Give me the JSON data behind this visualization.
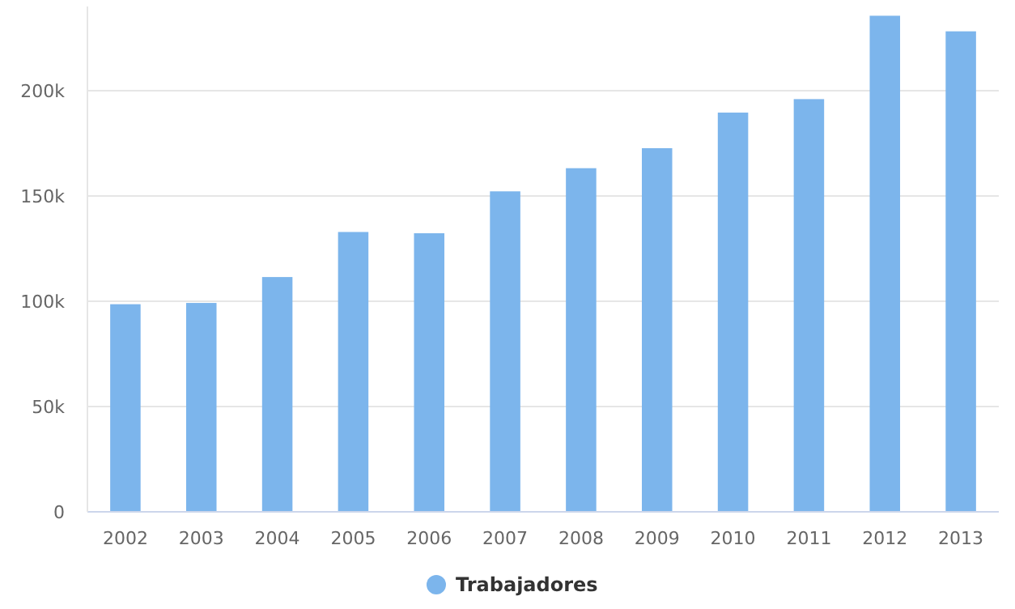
{
  "chart_data": {
    "type": "bar",
    "categories": [
      "2002",
      "2003",
      "2004",
      "2005",
      "2006",
      "2007",
      "2008",
      "2009",
      "2010",
      "2011",
      "2012",
      "2013"
    ],
    "series": [
      {
        "name": "Trabajadores",
        "color": "#7cb5ec",
        "values": [
          98600,
          99200,
          111500,
          132900,
          132300,
          152200,
          163200,
          172700,
          189600,
          196000,
          235600,
          228200
        ]
      }
    ],
    "ylim": [
      0,
      240000
    ],
    "yticks": [
      {
        "value": 0,
        "label": "0"
      },
      {
        "value": 50000,
        "label": "50k"
      },
      {
        "value": 100000,
        "label": "100k"
      },
      {
        "value": 150000,
        "label": "150k"
      },
      {
        "value": 200000,
        "label": "200k"
      }
    ],
    "grid": "y",
    "legend": "bottom"
  }
}
